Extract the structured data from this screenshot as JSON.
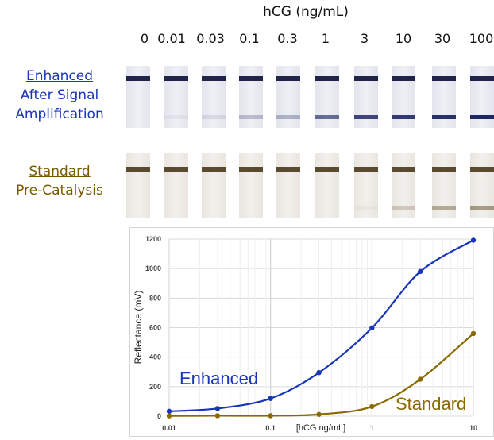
{
  "header": {
    "title": "hCG (ng/mL)",
    "concentrations": [
      "0",
      "0.01",
      "0.03",
      "0.1",
      "0.3",
      "1",
      "3",
      "10",
      "30",
      "100"
    ]
  },
  "rows": {
    "enhanced": {
      "label_line1": "Enhanced",
      "label_line2": "After Signal",
      "label_line3": "Amplification",
      "color": "#1a36b8"
    },
    "standard": {
      "label_line1": "Standard",
      "label_line2": "Pre-Catalysis",
      "color": "#7a5a00"
    }
  },
  "strips": {
    "enhanced_test_line_intensity": [
      0,
      0.05,
      0.1,
      0.25,
      0.3,
      0.65,
      0.85,
      0.9,
      0.95,
      1.0
    ],
    "standard_test_line_intensity": [
      0,
      0,
      0,
      0,
      0,
      0,
      0.05,
      0.25,
      0.45,
      0.55
    ]
  },
  "chart_data": {
    "type": "line",
    "xscale": "log",
    "x_ticks": [
      "0.01",
      "0.1",
      "1",
      "10"
    ],
    "y_ticks": [
      "0",
      "200",
      "400",
      "600",
      "800",
      "1000",
      "1200"
    ],
    "xlabel": "[hCG ng/mL]",
    "ylabel": "Reflectance (mV)",
    "xlim": [
      0.01,
      10
    ],
    "ylim": [
      0,
      1200
    ],
    "grid": true,
    "series": [
      {
        "name": "Enhanced",
        "color": "#1a36b8",
        "points": [
          [
            0.01,
            33
          ],
          [
            0.03,
            52
          ],
          [
            0.1,
            120
          ],
          [
            0.3,
            295
          ],
          [
            1,
            598
          ],
          [
            3,
            980
          ],
          [
            10,
            1192
          ]
        ]
      },
      {
        "name": "Standard",
        "color": "#8a6a00",
        "points": [
          [
            0.01,
            2
          ],
          [
            0.03,
            3
          ],
          [
            0.1,
            3
          ],
          [
            0.3,
            12
          ],
          [
            1,
            65
          ],
          [
            3,
            250
          ],
          [
            10,
            560
          ]
        ]
      }
    ]
  }
}
